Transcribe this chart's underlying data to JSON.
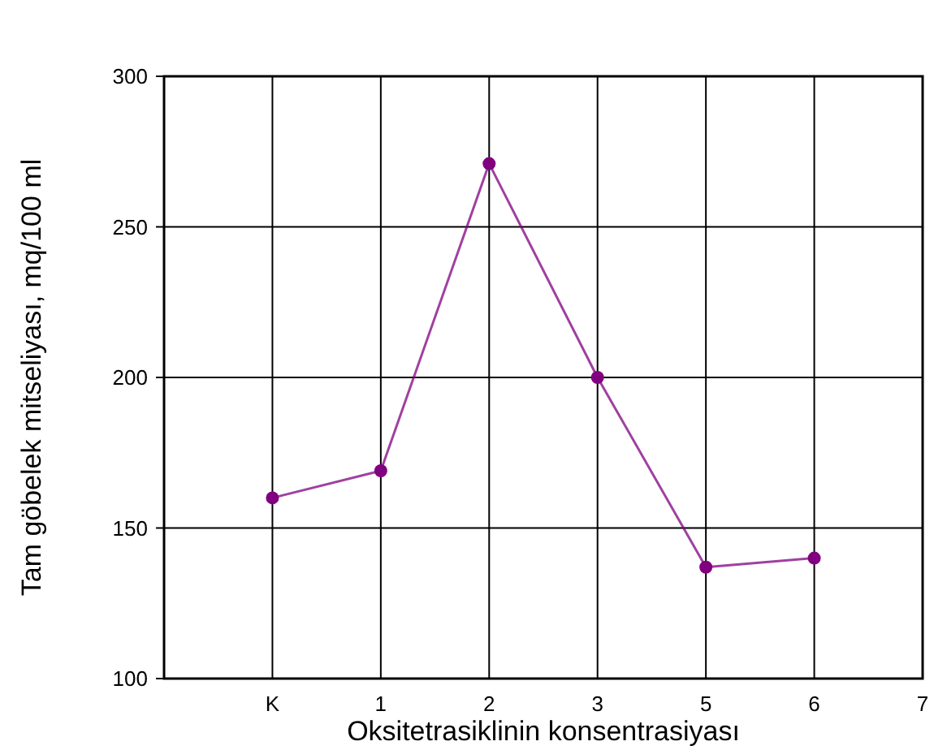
{
  "chart_data": {
    "type": "line",
    "xlabel": "Oksitetrasiklinin  konsentrasiyası",
    "ylabel": "Tam göbelek mitseliyası, mq/100 ml",
    "categories": [
      "K",
      "1",
      "2",
      "3",
      "5",
      "6",
      "7"
    ],
    "series": [
      {
        "color": "#800080",
        "values": [
          160,
          169,
          271,
          200,
          137,
          140,
          null
        ]
      }
    ],
    "ylim": [
      100,
      300
    ],
    "yticks": [
      100,
      150,
      200,
      250,
      300
    ],
    "grid": true,
    "marker": "circle",
    "line_style": "solid"
  }
}
